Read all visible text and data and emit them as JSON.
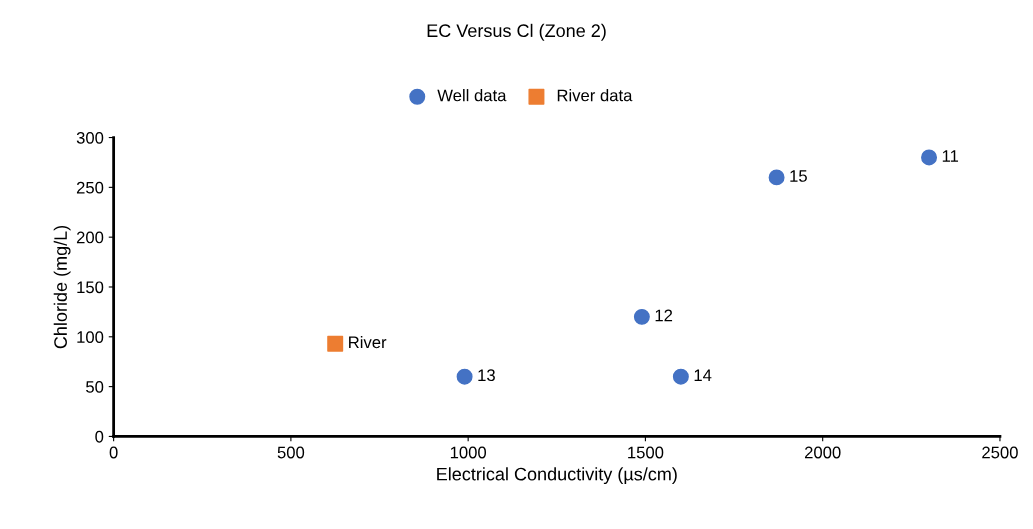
{
  "chart_data": {
    "type": "scatter",
    "title": "EC Versus Cl (Zone 2)",
    "xlabel": "Electrical Conductivity (µs/cm)",
    "ylabel": "Chloride (mg/L)",
    "series": [
      {
        "name": "Well data",
        "color": "#4472c4",
        "marker": "circle",
        "x": [
          2300,
          1490,
          990,
          1600,
          1870
        ],
        "values": [
          280,
          120,
          60,
          60,
          260
        ]
      },
      {
        "name": "River data",
        "color": "#ed7d31",
        "marker": "square",
        "x": [
          625
        ],
        "values": [
          93
        ]
      }
    ],
    "annotations": [
      {
        "text": "11",
        "x": 2300,
        "y": 280
      },
      {
        "text": "12",
        "x": 1490,
        "y": 120
      },
      {
        "text": "13",
        "x": 990,
        "y": 60
      },
      {
        "text": "14",
        "x": 1600,
        "y": 60
      },
      {
        "text": "15",
        "x": 1870,
        "y": 260
      },
      {
        "text": "River",
        "x": 625,
        "y": 93
      }
    ],
    "xlim": [
      0,
      2500
    ],
    "xticks": [
      0,
      500,
      1000,
      1500,
      2000,
      2500
    ],
    "ylim": [
      0,
      300
    ],
    "yticks": [
      0,
      50,
      100,
      150,
      200,
      250,
      300
    ],
    "grid": false,
    "legend": "top"
  }
}
